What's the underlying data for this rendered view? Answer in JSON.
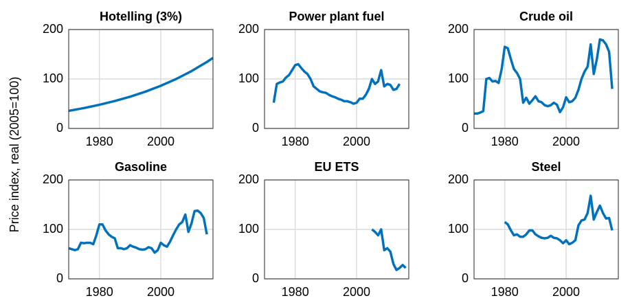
{
  "ylabel": "Price index, real (2005=100)",
  "chart_data": [
    {
      "type": "line",
      "title": "Hotelling (3%)",
      "color": "#0072bd",
      "x": [
        1970,
        1975,
        1980,
        1985,
        1990,
        1995,
        2000,
        2005,
        2010,
        2015,
        2017
      ],
      "values": [
        35.5,
        41.2,
        47.8,
        55.4,
        64.2,
        74.4,
        86.3,
        100,
        115.9,
        134.4,
        142.6
      ],
      "xlim": [
        1970,
        2017
      ],
      "xticks": [
        1980,
        2000
      ],
      "ylim": [
        0,
        200
      ],
      "yticks": [
        0,
        100,
        200
      ],
      "grid": true
    },
    {
      "type": "line",
      "title": "Power plant fuel",
      "color": "#0072bd",
      "x": [
        1973,
        1974,
        1975,
        1976,
        1977,
        1978,
        1979,
        1980,
        1981,
        1982,
        1983,
        1984,
        1985,
        1986,
        1987,
        1988,
        1989,
        1990,
        1991,
        1992,
        1993,
        1994,
        1995,
        1996,
        1997,
        1998,
        1999,
        2000,
        2001,
        2002,
        2003,
        2004,
        2005,
        2006,
        2007,
        2008,
        2009,
        2010,
        2011,
        2012,
        2013,
        2014
      ],
      "values": [
        52,
        90,
        93,
        95,
        103,
        108,
        118,
        128,
        130,
        122,
        115,
        110,
        100,
        85,
        80,
        75,
        73,
        72,
        68,
        65,
        63,
        60,
        58,
        55,
        55,
        53,
        50,
        52,
        60,
        60,
        68,
        80,
        100,
        90,
        95,
        118,
        85,
        90,
        88,
        78,
        80,
        90
      ],
      "xlim": [
        1970,
        2017
      ],
      "xticks": [
        1980,
        2000
      ],
      "ylim": [
        0,
        200
      ],
      "yticks": [
        0,
        100,
        200
      ],
      "grid": true
    },
    {
      "type": "line",
      "title": "Crude oil",
      "color": "#0072bd",
      "x": [
        1970,
        1971,
        1972,
        1973,
        1974,
        1975,
        1976,
        1977,
        1978,
        1979,
        1980,
        1981,
        1982,
        1983,
        1984,
        1985,
        1986,
        1987,
        1988,
        1989,
        1990,
        1991,
        1992,
        1993,
        1994,
        1995,
        1996,
        1997,
        1998,
        1999,
        2000,
        2001,
        2002,
        2003,
        2004,
        2005,
        2006,
        2007,
        2008,
        2009,
        2010,
        2011,
        2012,
        2013,
        2014,
        2015
      ],
      "values": [
        30,
        30,
        32,
        35,
        100,
        102,
        95,
        96,
        92,
        120,
        165,
        162,
        140,
        120,
        112,
        100,
        52,
        62,
        50,
        57,
        65,
        55,
        53,
        47,
        45,
        47,
        52,
        48,
        33,
        43,
        63,
        53,
        55,
        62,
        78,
        100,
        115,
        125,
        170,
        110,
        140,
        180,
        178,
        170,
        155,
        80
      ],
      "xlim": [
        1970,
        2017
      ],
      "xticks": [
        1980,
        2000
      ],
      "ylim": [
        0,
        200
      ],
      "yticks": [
        0,
        100,
        200
      ],
      "grid": true
    },
    {
      "type": "line",
      "title": "Gasoline",
      "color": "#0072bd",
      "x": [
        1970,
        1971,
        1972,
        1973,
        1974,
        1975,
        1976,
        1977,
        1978,
        1979,
        1980,
        1981,
        1982,
        1983,
        1984,
        1985,
        1986,
        1987,
        1988,
        1989,
        1990,
        1991,
        1992,
        1993,
        1994,
        1995,
        1996,
        1997,
        1998,
        1999,
        2000,
        2001,
        2002,
        2003,
        2004,
        2005,
        2006,
        2007,
        2008,
        2009,
        2010,
        2011,
        2012,
        2013,
        2014,
        2015
      ],
      "values": [
        62,
        60,
        58,
        60,
        73,
        72,
        73,
        73,
        70,
        88,
        110,
        110,
        98,
        90,
        85,
        82,
        62,
        62,
        60,
        62,
        68,
        65,
        63,
        60,
        59,
        60,
        64,
        62,
        53,
        58,
        73,
        68,
        65,
        75,
        88,
        100,
        110,
        115,
        130,
        95,
        112,
        137,
        138,
        133,
        123,
        90
      ],
      "xlim": [
        1970,
        2017
      ],
      "xticks": [
        1980,
        2000
      ],
      "ylim": [
        0,
        200
      ],
      "yticks": [
        0,
        100,
        200
      ],
      "grid": true
    },
    {
      "type": "line",
      "title": "EU ETS",
      "color": "#0072bd",
      "x": [
        2005,
        2006,
        2007,
        2008,
        2009,
        2010,
        2011,
        2012,
        2013,
        2014,
        2015,
        2016
      ],
      "values": [
        100,
        95,
        88,
        100,
        58,
        62,
        55,
        30,
        18,
        22,
        28,
        22
      ],
      "xlim": [
        1970,
        2017
      ],
      "xticks": [
        1980,
        2000
      ],
      "ylim": [
        0,
        200
      ],
      "yticks": [
        0,
        100,
        200
      ],
      "grid": true
    },
    {
      "type": "line",
      "title": "Steel",
      "color": "#0072bd",
      "x": [
        1980,
        1981,
        1982,
        1983,
        1984,
        1985,
        1986,
        1987,
        1988,
        1989,
        1990,
        1991,
        1992,
        1993,
        1994,
        1995,
        1996,
        1997,
        1998,
        1999,
        2000,
        2001,
        2002,
        2003,
        2004,
        2005,
        2006,
        2007,
        2008,
        2009,
        2010,
        2011,
        2012,
        2013,
        2014,
        2015
      ],
      "values": [
        115,
        110,
        98,
        88,
        90,
        85,
        85,
        90,
        98,
        98,
        90,
        86,
        83,
        82,
        83,
        87,
        83,
        82,
        78,
        72,
        78,
        70,
        73,
        78,
        108,
        118,
        120,
        133,
        168,
        120,
        135,
        148,
        133,
        122,
        123,
        98
      ],
      "xlim": [
        1970,
        2017
      ],
      "xticks": [
        1980,
        2000
      ],
      "ylim": [
        0,
        200
      ],
      "yticks": [
        0,
        100,
        200
      ],
      "grid": true
    }
  ]
}
